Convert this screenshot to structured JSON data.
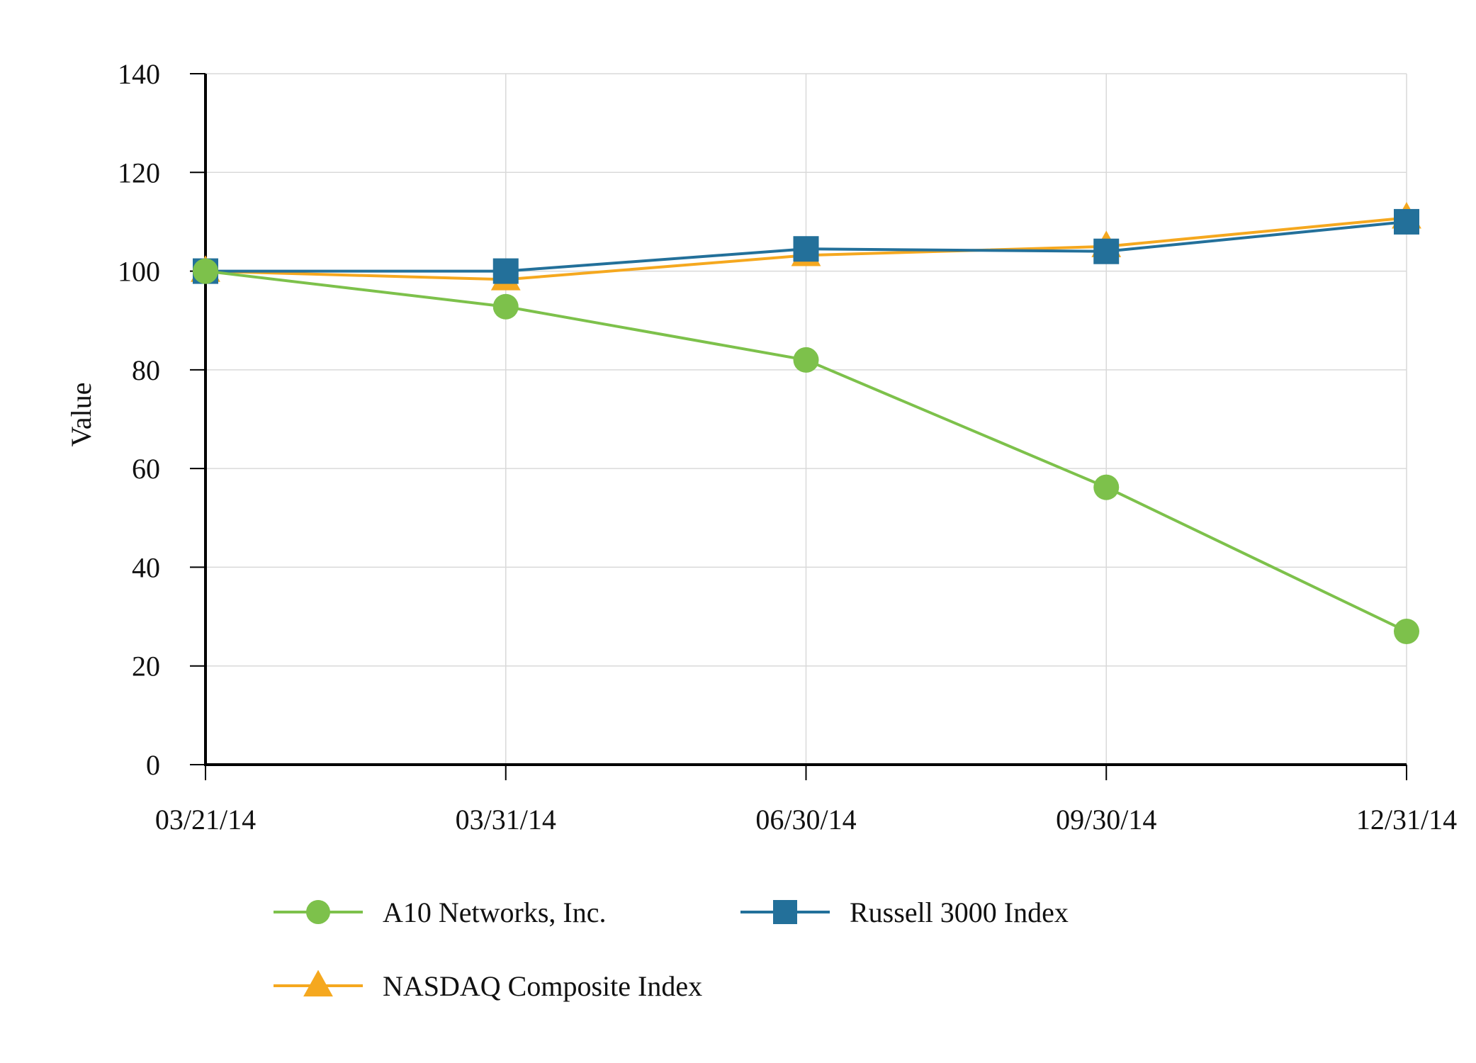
{
  "chart_data": {
    "type": "line",
    "x": [
      "03/21/14",
      "03/31/14",
      "06/30/14",
      "09/30/14",
      "12/31/14"
    ],
    "ylabel": "Value",
    "ylim": [
      0,
      140
    ],
    "yticks": [
      "0",
      "20",
      "40",
      "60",
      "80",
      "100",
      "120",
      "140"
    ],
    "grid": true,
    "legend_position": "bottom",
    "series": [
      {
        "name": "A10 Networks, Inc.",
        "marker": "circle",
        "color": "#7dc14b",
        "values": [
          100,
          92.8,
          82,
          56.2,
          27
        ]
      },
      {
        "name": "Russell 3000 Index",
        "marker": "square",
        "color": "#23709a",
        "values": [
          100,
          100,
          104.5,
          104,
          110
        ]
      },
      {
        "name": "NASDAQ Composite Index",
        "marker": "triangle",
        "color": "#f5a81f",
        "values": [
          100,
          98.3,
          103.2,
          105,
          110.8
        ]
      }
    ]
  }
}
